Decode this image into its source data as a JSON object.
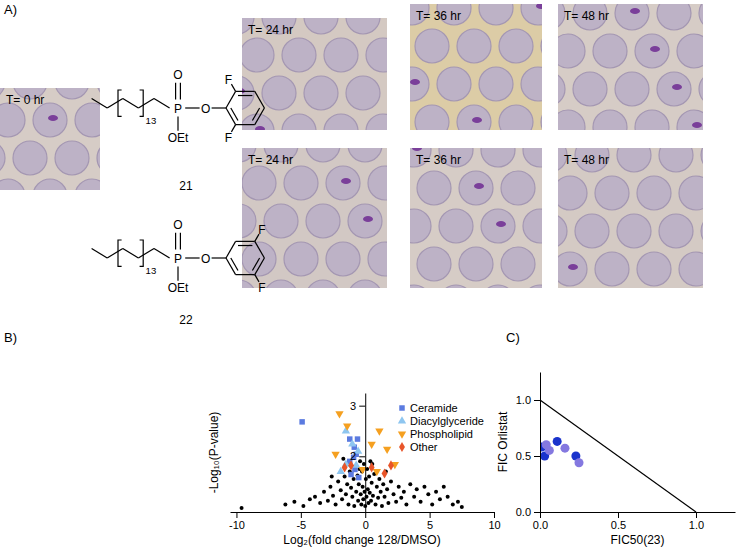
{
  "panel_a": {
    "label": "A)",
    "images": [
      {
        "label": "T= 0 hr"
      },
      {
        "label": "T= 24 hr"
      },
      {
        "label": "T= 36 hr"
      },
      {
        "label": "T= 48 hr"
      },
      {
        "label": "T= 24 hr"
      },
      {
        "label": "T= 36 hr"
      },
      {
        "label": "T= 48 hr"
      }
    ],
    "compounds": [
      {
        "number": "21",
        "atoms": [
          "O",
          "P",
          "O",
          "OEt",
          "F",
          "F"
        ],
        "repeat": "13"
      },
      {
        "number": "22",
        "atoms": [
          "O",
          "P",
          "O",
          "OEt",
          "F",
          "F"
        ],
        "repeat": "13"
      }
    ]
  },
  "chart_data": [
    {
      "type": "scatter",
      "title": "B)",
      "x_label": "Log₂(fold change 128/DMSO)",
      "y_label": "-Log₁₀(P-value)",
      "xlim": [
        -10.5,
        10
      ],
      "xticks": [
        -10,
        -5,
        0,
        5,
        10
      ],
      "ylim": [
        0.9,
        3.25
      ],
      "yticks": [
        2,
        3
      ],
      "legend": "upper right",
      "series": [
        {
          "color": "#000000",
          "marker": "circle",
          "x": [
            -9.6,
            -6.2,
            -5.5,
            -4.8,
            -4.3,
            -3.9,
            -3.5,
            -3.2,
            -2.9,
            -2.7,
            -2.5,
            -2.3,
            -2.1,
            -1.9,
            -1.8,
            -1.6,
            -1.5,
            -1.4,
            -1.3,
            -1.2,
            -1.1,
            -1.0,
            -0.9,
            -0.85,
            -0.8,
            -0.7,
            -0.6,
            -0.55,
            -0.5,
            -0.4,
            -0.35,
            -0.3,
            -0.25,
            -0.2,
            -0.15,
            -0.1,
            -0.05,
            0.0,
            0.05,
            0.1,
            0.15,
            0.2,
            0.25,
            0.3,
            0.35,
            0.4,
            0.45,
            0.5,
            0.6,
            0.7,
            0.8,
            0.9,
            1.0,
            1.1,
            1.2,
            1.3,
            1.4,
            1.5,
            1.7,
            1.8,
            2.0,
            2.2,
            2.4,
            2.6,
            2.8,
            3.0,
            3.2,
            3.5,
            3.8,
            4.0,
            4.3,
            4.6,
            4.9,
            5.2,
            5.5,
            5.8,
            6.1,
            6.4,
            6.8,
            7.2,
            7.5,
            -0.45,
            0.55,
            -1.7,
            1.6,
            -2.6
          ],
          "values": [
            0.98,
            1.05,
            1.1,
            1.02,
            1.15,
            1.2,
            1.08,
            1.3,
            1.12,
            1.4,
            1.22,
            1.05,
            1.5,
            1.33,
            1.15,
            1.6,
            1.25,
            1.45,
            1.05,
            1.7,
            1.38,
            1.2,
            1.55,
            1.02,
            1.8,
            1.3,
            1.62,
            1.12,
            1.45,
            1.9,
            1.25,
            1.05,
            1.7,
            1.4,
            1.15,
            1.85,
            1.3,
            1.02,
            1.55,
            1.2,
            1.75,
            1.35,
            1.08,
            1.6,
            1.28,
            1.9,
            1.12,
            1.48,
            1.22,
            1.65,
            1.05,
            1.4,
            1.18,
            1.55,
            1.3,
            1.02,
            1.45,
            1.2,
            1.35,
            1.08,
            1.5,
            1.25,
            1.1,
            1.4,
            1.18,
            1.3,
            1.05,
            1.45,
            1.2,
            1.35,
            1.1,
            1.4,
            1.25,
            1.05,
            1.3,
            1.15,
            1.4,
            1.2,
            1.05,
            1.1,
            1.0,
            1.75,
            1.85,
            1.95,
            1.7,
            1.6
          ]
        },
        {
          "name": "Ceramide",
          "color": "#5b7be0",
          "marker": "square",
          "x": [
            -4.9,
            -1.2,
            -0.85,
            -0.7,
            -1.2,
            -0.8,
            -1.1,
            -0.6,
            -0.9,
            -0.5
          ],
          "values": [
            2.68,
            2.34,
            2.18,
            2.04,
            1.9,
            1.74,
            1.64,
            2.34,
            1.98,
            1.58
          ]
        },
        {
          "name": "Diacylglyceride",
          "color": "#8ec6f0",
          "marker": "triangle",
          "x": [
            -1.5,
            -1.0,
            -1.5,
            -0.7,
            -1.9,
            -0.55
          ],
          "values": [
            2.5,
            2.24,
            1.84,
            1.82,
            1.7,
            2.1
          ]
        },
        {
          "name": "Phospholipid",
          "color": "#f5a020",
          "marker": "triangle-down",
          "x": [
            -2.0,
            -1.4,
            1.1,
            2.3,
            -2.3,
            0.5,
            1.7,
            -0.2,
            0.9
          ],
          "values": [
            2.84,
            2.6,
            2.5,
            1.84,
            2.04,
            2.24,
            2.14,
            1.74,
            1.7
          ]
        },
        {
          "name": "Other",
          "color": "#e8552a",
          "marker": "diamond",
          "x": [
            -1.1,
            0.5,
            2.0,
            1.5,
            -1.6
          ],
          "values": [
            1.82,
            1.78,
            1.82,
            1.66,
            1.78
          ]
        }
      ]
    },
    {
      "type": "scatter",
      "title": "C)",
      "x_label": "FIC50(23)",
      "y_label": "FIC Orlistat",
      "xlim": [
        0,
        1.25
      ],
      "xticks": [
        {
          "value": 0,
          "label": "0.0"
        },
        {
          "value": 0.5,
          "label": "0.5"
        },
        {
          "value": 1,
          "label": "1.0"
        }
      ],
      "ylim": [
        0,
        1.25
      ],
      "yticks": [
        {
          "value": 0,
          "label": "0.0"
        },
        {
          "value": 0.5,
          "label": "0.5"
        },
        {
          "value": 1,
          "label": "1.0"
        }
      ],
      "series": [
        {
          "type": "scatter",
          "marker": "circle",
          "colors": [
            "#1a33cc",
            "#8478e0",
            "#1a33cc",
            "#8478e0",
            "#1a33cc",
            "#8478e0",
            "#1a33cc",
            "#8478e0"
          ],
          "x": [
            0.01,
            0.04,
            0.03,
            0.06,
            0.11,
            0.16,
            0.23,
            0.25
          ],
          "values": [
            0.58,
            0.6,
            0.5,
            0.55,
            0.63,
            0.57,
            0.5,
            0.44
          ]
        },
        {
          "type": "line",
          "color": "#000000",
          "x": [
            0,
            1
          ],
          "values": [
            1,
            0
          ]
        }
      ]
    }
  ]
}
